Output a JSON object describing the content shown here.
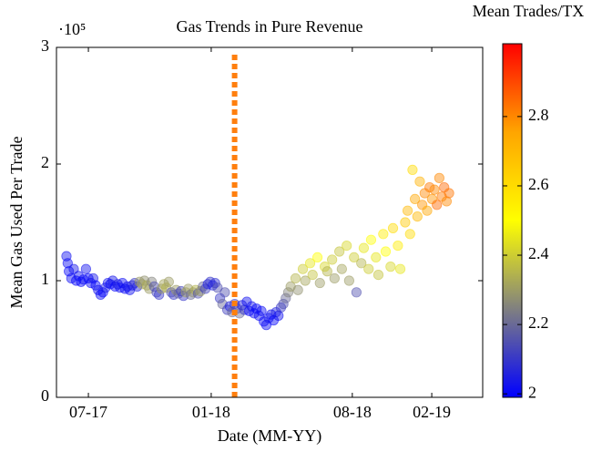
{
  "chart_data": {
    "type": "scatter",
    "title": "Gas Trends in Pure Revenue",
    "x_label": "Date (MM-YY)",
    "y_label": "Mean Gas Used Per Trade",
    "y_multiplier": "·10⁵",
    "colorbar_label": "Mean Trades/TX",
    "xlim": [
      2017.369,
      2019.118
    ],
    "xticks": [
      {
        "value": 2017.5,
        "label": "07-17"
      },
      {
        "value": 2018.004,
        "label": "01-18"
      },
      {
        "value": 2018.583,
        "label": "08-18"
      },
      {
        "value": 2018.909,
        "label": "02-19"
      }
    ],
    "ylim": [
      0,
      3
    ],
    "yticks": [
      0,
      1,
      2,
      3
    ],
    "clim": [
      1.99,
      3.01
    ],
    "cticks": [
      2,
      2.2,
      2.4,
      2.6,
      2.8
    ],
    "colormap": [
      "#0000ff",
      "#808080",
      "#ffff00",
      "#ffa500",
      "#ff0000"
    ],
    "vline": {
      "x": 2018.1,
      "color": "#ff7f0e"
    },
    "x": [
      2017.41,
      2017.415,
      2017.42,
      2017.43,
      2017.44,
      2017.45,
      2017.46,
      2017.47,
      2017.48,
      2017.49,
      2017.5,
      2017.51,
      2017.52,
      2017.53,
      2017.54,
      2017.55,
      2017.56,
      2017.57,
      2017.58,
      2017.59,
      2017.6,
      2017.61,
      2017.62,
      2017.63,
      2017.64,
      2017.65,
      2017.66,
      2017.67,
      2017.68,
      2017.69,
      2017.7,
      2017.71,
      2017.72,
      2017.73,
      2017.74,
      2017.75,
      2017.76,
      2017.77,
      2017.78,
      2017.79,
      2017.8,
      2017.81,
      2017.82,
      2017.83,
      2017.84,
      2017.85,
      2017.86,
      2017.87,
      2017.88,
      2017.89,
      2017.9,
      2017.91,
      2017.92,
      2017.93,
      2017.94,
      2017.95,
      2017.96,
      2017.97,
      2017.98,
      2017.99,
      2018,
      2018.01,
      2018.02,
      2018.03,
      2018.04,
      2018.05,
      2018.06,
      2018.07,
      2018.08,
      2018.09,
      2018.1,
      2018.11,
      2018.12,
      2018.13,
      2018.14,
      2018.15,
      2018.16,
      2018.17,
      2018.18,
      2018.19,
      2018.2,
      2018.21,
      2018.22,
      2018.23,
      2018.24,
      2018.25,
      2018.26,
      2018.27,
      2018.28,
      2018.29,
      2018.3,
      2018.31,
      2018.32,
      2018.33,
      2018.35,
      2018.36,
      2018.38,
      2018.39,
      2018.41,
      2018.42,
      2018.44,
      2018.45,
      2018.47,
      2018.48,
      2018.5,
      2018.51,
      2018.53,
      2018.54,
      2018.56,
      2018.57,
      2018.59,
      2018.6,
      2018.62,
      2018.63,
      2018.65,
      2018.66,
      2018.68,
      2018.69,
      2018.71,
      2018.72,
      2018.74,
      2018.75,
      2018.77,
      2018.78,
      2018.8,
      2018.81,
      2018.82,
      2018.83,
      2018.84,
      2018.85,
      2018.86,
      2018.87,
      2018.88,
      2018.89,
      2018.9,
      2018.91,
      2018.92,
      2018.93,
      2018.94,
      2018.95,
      2018.96,
      2018.97,
      2018.98
    ],
    "values": [
      1.21,
      1.15,
      1.08,
      1.02,
      1.1,
      1.0,
      1.04,
      0.99,
      1.01,
      1.1,
      1.02,
      0.98,
      1.02,
      0.96,
      0.92,
      0.88,
      0.9,
      0.94,
      0.98,
      0.97,
      1.0,
      0.95,
      0.97,
      0.94,
      0.98,
      0.93,
      0.95,
      0.92,
      0.96,
      0.98,
      0.95,
      0.99,
      0.97,
      1.0,
      0.96,
      0.93,
      0.99,
      0.95,
      0.9,
      0.88,
      0.93,
      0.97,
      0.94,
      0.99,
      0.9,
      0.88,
      0.92,
      0.89,
      0.91,
      0.87,
      0.9,
      0.93,
      0.88,
      0.9,
      0.92,
      0.89,
      0.91,
      0.95,
      0.93,
      0.97,
      0.99,
      0.96,
      0.98,
      0.94,
      0.85,
      0.8,
      0.9,
      0.75,
      0.78,
      0.73,
      0.8,
      0.76,
      0.72,
      0.79,
      0.75,
      0.82,
      0.74,
      0.78,
      0.72,
      0.76,
      0.7,
      0.74,
      0.65,
      0.62,
      0.68,
      0.71,
      0.66,
      0.73,
      0.7,
      0.77,
      0.8,
      0.85,
      0.9,
      0.95,
      1.02,
      0.92,
      1.1,
      1.0,
      1.15,
      1.05,
      1.2,
      0.98,
      1.12,
      1.08,
      1.18,
      1.02,
      1.25,
      1.1,
      1.3,
      1.0,
      1.2,
      0.9,
      1.15,
      1.28,
      1.1,
      1.35,
      1.2,
      1.05,
      1.4,
      1.25,
      1.12,
      1.45,
      1.3,
      1.1,
      1.5,
      1.6,
      1.4,
      1.95,
      1.7,
      1.55,
      1.85,
      1.65,
      1.75,
      1.6,
      1.8,
      1.7,
      1.78,
      1.65,
      1.88,
      1.72,
      1.8,
      1.68,
      1.75
    ],
    "color_values": [
      2.02,
      2.01,
      2.0,
      2.01,
      2.03,
      2.0,
      2.02,
      2.0,
      2.01,
      2.02,
      2.0,
      2.01,
      2.03,
      2.0,
      2.02,
      2.01,
      2.0,
      2.04,
      2.02,
      2.01,
      2.03,
      2.0,
      2.05,
      2.02,
      2.01,
      2.0,
      2.03,
      2.02,
      2.04,
      2.1,
      2.05,
      2.3,
      2.32,
      2.28,
      2.33,
      2.3,
      2.25,
      2.15,
      2.12,
      2.1,
      2.3,
      2.32,
      2.35,
      2.3,
      2.15,
      2.1,
      2.3,
      2.2,
      2.12,
      2.1,
      2.32,
      2.3,
      2.2,
      2.28,
      2.35,
      2.15,
      2.3,
      2.2,
      2.12,
      2.05,
      2.1,
      2.05,
      2.08,
      2.15,
      2.1,
      2.2,
      2.15,
      2.12,
      2.05,
      2.2,
      2.1,
      2.15,
      2.2,
      2.05,
      2.1,
      2.02,
      2.0,
      2.03,
      2.01,
      2.0,
      2.02,
      2.01,
      2.0,
      2.01,
      2.03,
      2.02,
      2.0,
      2.05,
      2.02,
      2.1,
      2.15,
      2.2,
      2.25,
      2.3,
      2.35,
      2.28,
      2.4,
      2.32,
      2.45,
      2.38,
      2.5,
      2.3,
      2.42,
      2.35,
      2.4,
      2.3,
      2.38,
      2.32,
      2.42,
      2.3,
      2.4,
      2.15,
      2.35,
      2.45,
      2.4,
      2.5,
      2.45,
      2.38,
      2.55,
      2.5,
      2.42,
      2.6,
      2.55,
      2.45,
      2.65,
      2.7,
      2.6,
      2.6,
      2.75,
      2.7,
      2.72,
      2.78,
      2.8,
      2.75,
      2.82,
      2.78,
      2.8,
      2.85,
      2.8,
      2.82,
      2.85,
      2.8,
      2.83
    ]
  }
}
